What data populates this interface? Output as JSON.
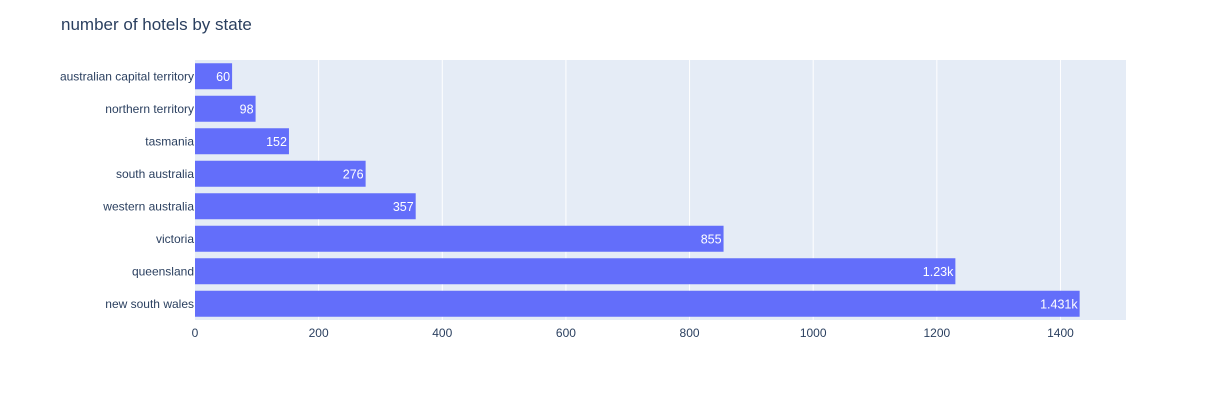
{
  "chart_data": {
    "type": "bar",
    "orientation": "horizontal",
    "title": "number of hotels by state",
    "xlabel": "",
    "ylabel": "",
    "categories": [
      "australian capital territory",
      "northern territory",
      "tasmania",
      "south australia",
      "western australia",
      "victoria",
      "queensland",
      "new south wales"
    ],
    "values": [
      60,
      98,
      152,
      276,
      357,
      855,
      1230,
      1431
    ],
    "data_labels": [
      "60",
      "98",
      "152",
      "276",
      "357",
      "855",
      "1.23k",
      "1.431k"
    ],
    "xlim": [
      0,
      1506
    ],
    "x_ticks": [
      0,
      200,
      400,
      600,
      800,
      1000,
      1200,
      1400
    ],
    "x_tick_labels": [
      "0",
      "200",
      "400",
      "600",
      "800",
      "1000",
      "1200",
      "1400"
    ],
    "grid": true,
    "colors": {
      "bar": "#636efa",
      "plot_background": "#e5ecf6",
      "grid": "#ffffff",
      "text": "#2a3f5f",
      "bar_label": "#ffffff"
    }
  }
}
